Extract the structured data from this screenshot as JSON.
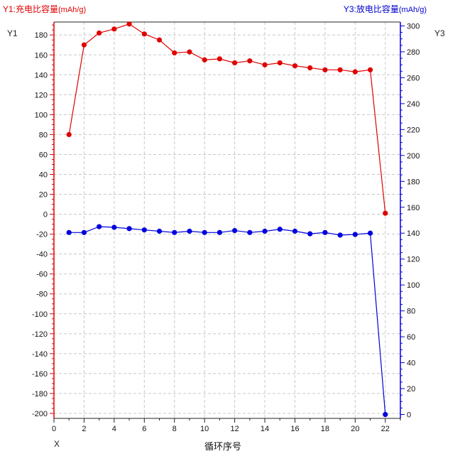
{
  "legend": {
    "y1_name": "Y1:充电比容量",
    "y1_unit": "(mAh/g)",
    "y3_name": "Y3:放电比容量",
    "y3_unit": "(mAh/g)"
  },
  "axis_names": {
    "left": "Y1",
    "right": "Y3",
    "bottom": "X"
  },
  "x_title": "循环序号",
  "chart_data": {
    "type": "line",
    "grid": true,
    "colors": {
      "y1": "#e00000",
      "y3": "#0000dd",
      "grid": "#c8c8c8"
    },
    "x": [
      1,
      2,
      3,
      4,
      5,
      6,
      7,
      8,
      9,
      10,
      11,
      12,
      13,
      14,
      15,
      16,
      17,
      18,
      19,
      20,
      21,
      22
    ],
    "xlim": [
      0,
      23
    ],
    "xticks": [
      "0",
      "2",
      "4",
      "6",
      "8",
      "10",
      "12",
      "14",
      "16",
      "18",
      "20",
      "22"
    ],
    "y1": {
      "ylim": [
        -205,
        193
      ],
      "ticks": [
        "180",
        "160",
        "140",
        "120",
        "100",
        "80",
        "60",
        "40",
        "20",
        "0",
        "-20",
        "-40",
        "-60",
        "-80",
        "-100",
        "-120",
        "-140",
        "-160",
        "-180",
        "-200"
      ]
    },
    "y3": {
      "ylim": [
        -3,
        303
      ],
      "ticks": [
        "300",
        "280",
        "260",
        "240",
        "220",
        "200",
        "180",
        "160",
        "140",
        "120",
        "100",
        "80",
        "60",
        "40",
        "20",
        "0"
      ]
    },
    "series": [
      {
        "axis": "y1",
        "values": [
          80,
          170,
          182,
          186,
          191,
          181,
          175,
          162,
          163,
          155,
          156,
          152,
          154,
          150,
          152,
          149,
          147,
          145,
          145,
          143,
          145,
          1
        ]
      },
      {
        "axis": "y3",
        "values": [
          140.5,
          140.5,
          145,
          144.5,
          143.5,
          142.5,
          141.5,
          140.5,
          141.5,
          140.5,
          140.5,
          142,
          140.5,
          141.5,
          143,
          141.5,
          139.5,
          140.5,
          138.5,
          139,
          140,
          0
        ]
      }
    ]
  }
}
